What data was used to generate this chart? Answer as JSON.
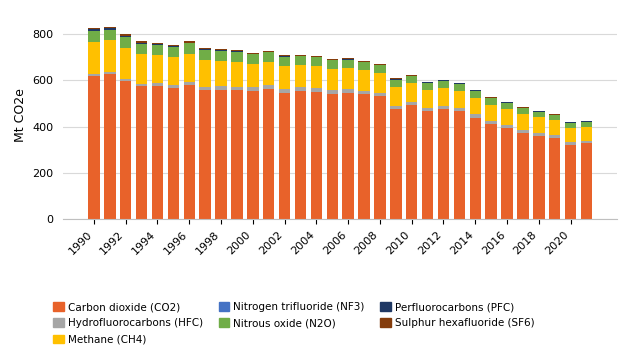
{
  "years": [
    1990,
    1991,
    1992,
    1993,
    1994,
    1995,
    1996,
    1997,
    1998,
    1999,
    2000,
    2001,
    2002,
    2003,
    2004,
    2005,
    2006,
    2007,
    2008,
    2009,
    2010,
    2011,
    2012,
    2013,
    2014,
    2015,
    2016,
    2017,
    2018,
    2019,
    2020,
    2021
  ],
  "co2": [
    617,
    625,
    598,
    574,
    575,
    568,
    578,
    558,
    558,
    556,
    552,
    562,
    547,
    553,
    551,
    542,
    545,
    539,
    530,
    475,
    493,
    467,
    476,
    466,
    439,
    410,
    393,
    374,
    361,
    350,
    320,
    328
  ],
  "hfc": [
    8,
    9,
    9,
    10,
    11,
    13,
    14,
    15,
    16,
    17,
    17,
    17,
    17,
    17,
    17,
    17,
    17,
    16,
    15,
    14,
    14,
    14,
    14,
    14,
    14,
    14,
    14,
    13,
    13,
    13,
    12,
    11
  ],
  "ch4": [
    140,
    138,
    132,
    127,
    121,
    117,
    119,
    113,
    108,
    106,
    102,
    101,
    98,
    95,
    93,
    90,
    89,
    87,
    85,
    81,
    79,
    77,
    77,
    75,
    72,
    71,
    69,
    67,
    66,
    64,
    62,
    61
  ],
  "nf3": [
    0.1,
    0.1,
    0.1,
    0.1,
    0.1,
    0.1,
    0.1,
    0.1,
    0.1,
    0.1,
    0.1,
    0.1,
    0.1,
    0.1,
    0.1,
    0.1,
    0.1,
    0.1,
    0.1,
    0.1,
    0.1,
    0.1,
    0.1,
    0.1,
    0.1,
    0.1,
    0.1,
    0.1,
    0.1,
    0.1,
    0.1,
    0.1
  ],
  "n2o": [
    48,
    46,
    48,
    47,
    46,
    46,
    48,
    46,
    44,
    43,
    40,
    40,
    39,
    38,
    38,
    38,
    37,
    36,
    35,
    33,
    31,
    31,
    31,
    30,
    29,
    28,
    27,
    26,
    25,
    24,
    23,
    22
  ],
  "pfc": [
    6,
    6,
    5,
    4,
    4,
    3,
    3,
    3,
    3,
    3,
    3,
    3,
    2,
    2,
    2,
    2,
    2,
    2,
    2,
    2,
    2,
    2,
    2,
    2,
    2,
    2,
    1,
    1,
    1,
    1,
    1,
    1
  ],
  "sf6": [
    6,
    6,
    5,
    5,
    5,
    5,
    5,
    5,
    5,
    5,
    5,
    5,
    4,
    4,
    4,
    4,
    4,
    4,
    4,
    3,
    3,
    3,
    3,
    3,
    3,
    3,
    2,
    2,
    2,
    2,
    2,
    2
  ],
  "colors": {
    "co2": "#E8622A",
    "hfc": "#A6A6A6",
    "ch4": "#FFC000",
    "nf3": "#4472C4",
    "n2o": "#70AD47",
    "pfc": "#1F3864",
    "sf6": "#843C0C"
  },
  "ylabel": "Mt CO2e",
  "ylim": [
    0,
    900
  ],
  "yticks": [
    0,
    200,
    400,
    600,
    800
  ],
  "legend": [
    {
      "label": "Carbon dioxide (CO2)",
      "color": "#E8622A"
    },
    {
      "label": "Hydrofluorocarbons (HFC)",
      "color": "#A6A6A6"
    },
    {
      "label": "Methane (CH4)",
      "color": "#FFC000"
    },
    {
      "label": "Nitrogen trifluoride (NF3)",
      "color": "#4472C4"
    },
    {
      "label": "Nitrous oxide (N2O)",
      "color": "#70AD47"
    },
    {
      "label": "Perfluorocarbons (PFC)",
      "color": "#1F3864"
    },
    {
      "label": "Sulphur hexafluoride (SF6)",
      "color": "#843C0C"
    }
  ],
  "background_color": "#FFFFFF",
  "grid_color": "#D9D9D9"
}
